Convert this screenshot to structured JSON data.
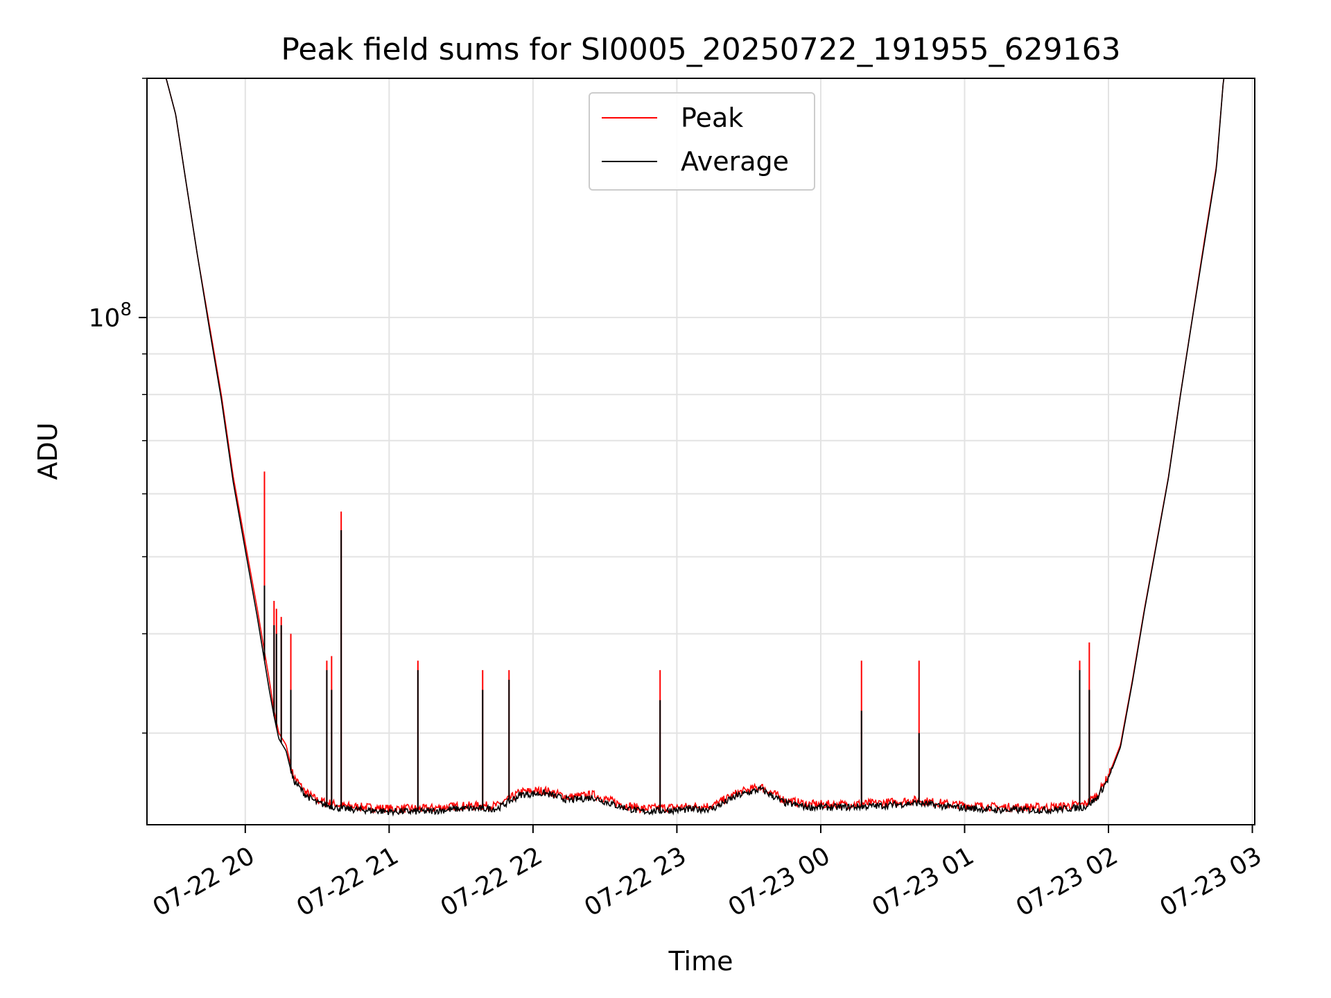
{
  "chart_data": {
    "type": "line",
    "title": "Peak field sums for SI0005_20250722_191955_629163",
    "xlabel": "Time",
    "ylabel": "ADU",
    "y_scale": "log",
    "ylim": [
      23000000,
      200000000
    ],
    "xlim": [
      "2025-07-22 19:19",
      "2025-07-23 03:01"
    ],
    "x_ticks": [
      "2025-07-22 20:00",
      "2025-07-22 21:00",
      "2025-07-22 22:00",
      "2025-07-22 23:00",
      "2025-07-23 00:00",
      "2025-07-23 01:00",
      "2025-07-23 02:00",
      "2025-07-23 03:00"
    ],
    "x_tick_labels": [
      "07-22 20",
      "07-22 21",
      "07-22 22",
      "07-22 23",
      "07-23 00",
      "07-23 01",
      "07-23 02",
      "07-23 03"
    ],
    "y_ticks": [
      100000000
    ],
    "y_tick_labels": [
      "10",
      "8"
    ],
    "grid": true,
    "legend_position": "top-center",
    "series": [
      {
        "name": "Peak",
        "color": "#ff0000",
        "x": [
          "2025-07-22 19:19",
          "2025-07-22 19:27",
          "2025-07-22 19:31",
          "2025-07-22 19:35",
          "2025-07-22 19:40",
          "2025-07-22 19:45",
          "2025-07-22 19:50",
          "2025-07-22 19:55",
          "2025-07-22 20:00",
          "2025-07-22 20:05",
          "2025-07-22 20:08",
          "2025-07-22 20:10",
          "2025-07-22 20:12",
          "2025-07-22 20:14",
          "2025-07-22 20:17",
          "2025-07-22 20:20",
          "2025-07-22 20:25",
          "2025-07-22 20:30",
          "2025-07-22 20:40",
          "2025-07-22 20:50",
          "2025-07-22 21:00",
          "2025-07-22 21:15",
          "2025-07-22 21:30",
          "2025-07-22 21:45",
          "2025-07-22 21:55",
          "2025-07-22 22:05",
          "2025-07-22 22:15",
          "2025-07-22 22:25",
          "2025-07-22 22:35",
          "2025-07-22 22:45",
          "2025-07-22 23:00",
          "2025-07-22 23:15",
          "2025-07-22 23:25",
          "2025-07-22 23:35",
          "2025-07-22 23:45",
          "2025-07-22 23:55",
          "2025-07-23 00:10",
          "2025-07-23 00:25",
          "2025-07-23 00:40",
          "2025-07-23 00:55",
          "2025-07-23 01:15",
          "2025-07-23 01:35",
          "2025-07-23 01:50",
          "2025-07-23 01:55",
          "2025-07-23 02:00",
          "2025-07-23 02:05",
          "2025-07-23 02:10",
          "2025-07-23 02:15",
          "2025-07-23 02:20",
          "2025-07-23 02:25",
          "2025-07-23 02:30",
          "2025-07-23 02:35",
          "2025-07-23 02:40",
          "2025-07-23 02:45",
          "2025-07-23 02:48",
          "2025-07-23 03:01"
        ],
        "values": [
          200000000,
          200000000,
          180000000,
          150000000,
          120000000,
          98000000,
          80000000,
          63000000,
          52000000,
          43000000,
          38000000,
          35000000,
          32000000,
          30000000,
          29000000,
          26500000,
          25300000,
          24700000,
          24300000,
          24200000,
          24100000,
          24100000,
          24300000,
          24300000,
          25300000,
          25400000,
          24900000,
          25100000,
          24500000,
          24100000,
          24200000,
          24300000,
          25200000,
          25700000,
          24700000,
          24400000,
          24400000,
          24500000,
          24700000,
          24400000,
          24200000,
          24200000,
          24400000,
          25000000,
          26500000,
          29000000,
          35000000,
          43000000,
          52000000,
          63000000,
          80000000,
          100000000,
          125000000,
          155000000,
          200000000,
          200000000
        ]
      },
      {
        "name": "Average",
        "color": "#000000",
        "x": [
          "2025-07-22 19:19",
          "2025-07-22 19:27",
          "2025-07-22 19:31",
          "2025-07-22 19:35",
          "2025-07-22 19:40",
          "2025-07-22 19:45",
          "2025-07-22 19:50",
          "2025-07-22 19:55",
          "2025-07-22 20:00",
          "2025-07-22 20:05",
          "2025-07-22 20:08",
          "2025-07-22 20:10",
          "2025-07-22 20:12",
          "2025-07-22 20:14",
          "2025-07-22 20:17",
          "2025-07-22 20:20",
          "2025-07-22 20:25",
          "2025-07-22 20:30",
          "2025-07-22 20:40",
          "2025-07-22 20:50",
          "2025-07-22 21:00",
          "2025-07-22 21:15",
          "2025-07-22 21:30",
          "2025-07-22 21:45",
          "2025-07-22 21:55",
          "2025-07-22 22:05",
          "2025-07-22 22:15",
          "2025-07-22 22:25",
          "2025-07-22 22:35",
          "2025-07-22 22:45",
          "2025-07-22 23:00",
          "2025-07-22 23:15",
          "2025-07-22 23:25",
          "2025-07-22 23:35",
          "2025-07-22 23:45",
          "2025-07-22 23:55",
          "2025-07-23 00:10",
          "2025-07-23 00:25",
          "2025-07-23 00:40",
          "2025-07-23 00:55",
          "2025-07-23 01:15",
          "2025-07-23 01:35",
          "2025-07-23 01:50",
          "2025-07-23 01:55",
          "2025-07-23 02:00",
          "2025-07-23 02:05",
          "2025-07-23 02:10",
          "2025-07-23 02:15",
          "2025-07-23 02:20",
          "2025-07-23 02:25",
          "2025-07-23 02:30",
          "2025-07-23 02:35",
          "2025-07-23 02:40",
          "2025-07-23 02:45",
          "2025-07-23 02:48",
          "2025-07-23 03:01"
        ],
        "values": [
          200000000,
          200000000,
          180000000,
          150000000,
          120000000,
          97000000,
          79000000,
          62000000,
          51000000,
          42000000,
          37000000,
          34000000,
          31500000,
          29500000,
          28500000,
          26200000,
          25100000,
          24500000,
          24100000,
          24000000,
          23900000,
          23900000,
          24100000,
          24100000,
          25100000,
          25200000,
          24700000,
          24900000,
          24300000,
          23900000,
          24000000,
          24100000,
          25000000,
          25500000,
          24500000,
          24200000,
          24200000,
          24300000,
          24500000,
          24200000,
          24000000,
          24000000,
          24200000,
          24800000,
          26300000,
          28800000,
          34800000,
          42800000,
          51800000,
          62800000,
          79800000,
          99800000,
          124000000,
          154000000,
          200000000,
          200000000
        ]
      }
    ],
    "spikes": [
      {
        "x": "2025-07-22 20:08",
        "peak": 64000000,
        "average": 46000000
      },
      {
        "x": "2025-07-22 20:12",
        "peak": 44000000,
        "average": 41000000
      },
      {
        "x": "2025-07-22 20:13",
        "peak": 43000000,
        "average": 40000000
      },
      {
        "x": "2025-07-22 20:15",
        "peak": 42000000,
        "average": 41000000
      },
      {
        "x": "2025-07-22 20:19",
        "peak": 40000000,
        "average": 34000000
      },
      {
        "x": "2025-07-22 20:34",
        "peak": 37000000,
        "average": 36000000
      },
      {
        "x": "2025-07-22 20:36",
        "peak": 37500000,
        "average": 34000000
      },
      {
        "x": "2025-07-22 20:40",
        "peak": 57000000,
        "average": 54000000
      },
      {
        "x": "2025-07-22 21:12",
        "peak": 37000000,
        "average": 36000000
      },
      {
        "x": "2025-07-22 21:39",
        "peak": 36000000,
        "average": 34000000
      },
      {
        "x": "2025-07-22 21:50",
        "peak": 36000000,
        "average": 35000000
      },
      {
        "x": "2025-07-22 22:53",
        "peak": 36000000,
        "average": 33000000
      },
      {
        "x": "2025-07-23 00:17",
        "peak": 37000000,
        "average": 32000000
      },
      {
        "x": "2025-07-23 00:41",
        "peak": 37000000,
        "average": 30000000
      },
      {
        "x": "2025-07-23 01:48",
        "peak": 37000000,
        "average": 36000000
      },
      {
        "x": "2025-07-23 01:52",
        "peak": 39000000,
        "average": 34000000
      }
    ]
  }
}
